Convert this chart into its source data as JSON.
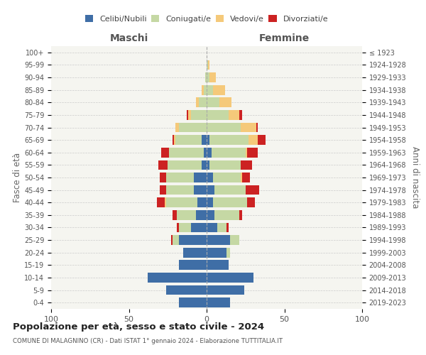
{
  "age_groups": [
    "0-4",
    "5-9",
    "10-14",
    "15-19",
    "20-24",
    "25-29",
    "30-34",
    "35-39",
    "40-44",
    "45-49",
    "50-54",
    "55-59",
    "60-64",
    "65-69",
    "70-74",
    "75-79",
    "80-84",
    "85-89",
    "90-94",
    "95-99",
    "100+"
  ],
  "birth_years": [
    "2019-2023",
    "2014-2018",
    "2009-2013",
    "2004-2008",
    "1999-2003",
    "1994-1998",
    "1989-1993",
    "1984-1988",
    "1979-1983",
    "1974-1978",
    "1969-1973",
    "1964-1968",
    "1959-1963",
    "1954-1958",
    "1949-1953",
    "1944-1948",
    "1939-1943",
    "1934-1938",
    "1929-1933",
    "1924-1928",
    "≤ 1923"
  ],
  "male_celibi": [
    18,
    26,
    38,
    18,
    15,
    18,
    10,
    7,
    6,
    8,
    8,
    3,
    2,
    3,
    0,
    0,
    0,
    0,
    0,
    0,
    0
  ],
  "male_coniugati": [
    0,
    0,
    0,
    0,
    0,
    4,
    8,
    12,
    20,
    18,
    18,
    22,
    22,
    17,
    18,
    10,
    5,
    2,
    1,
    0,
    0
  ],
  "male_vedovi": [
    0,
    0,
    0,
    0,
    0,
    0,
    0,
    0,
    1,
    0,
    0,
    0,
    0,
    1,
    2,
    2,
    2,
    1,
    0,
    0,
    0
  ],
  "male_divorziati": [
    0,
    0,
    0,
    0,
    0,
    1,
    1,
    3,
    5,
    4,
    4,
    6,
    5,
    1,
    0,
    1,
    0,
    0,
    0,
    0,
    0
  ],
  "female_celibi": [
    15,
    24,
    30,
    14,
    13,
    15,
    7,
    5,
    4,
    5,
    4,
    2,
    3,
    2,
    0,
    0,
    0,
    0,
    0,
    0,
    0
  ],
  "female_coniugati": [
    0,
    0,
    0,
    0,
    2,
    6,
    6,
    16,
    22,
    20,
    18,
    20,
    22,
    25,
    22,
    14,
    8,
    4,
    2,
    1,
    0
  ],
  "female_vedovi": [
    0,
    0,
    0,
    0,
    0,
    0,
    0,
    0,
    0,
    0,
    1,
    0,
    1,
    6,
    10,
    7,
    8,
    8,
    4,
    1,
    0
  ],
  "female_divorziati": [
    0,
    0,
    0,
    0,
    0,
    0,
    1,
    2,
    5,
    9,
    5,
    7,
    7,
    5,
    1,
    2,
    0,
    0,
    0,
    0,
    0
  ],
  "color_celibi": "#3f6ea6",
  "color_coniugati": "#c5d8a4",
  "color_vedovi": "#f5c97a",
  "color_divorziati": "#cc2222",
  "legend_celibi": "Celibi/Nubili",
  "legend_coniugati": "Coniugati/e",
  "legend_vedovi": "Vedovi/e",
  "legend_divorziati": "Divorziati/e",
  "title": "Popolazione per età, sesso e stato civile - 2024",
  "subtitle": "COMUNE DI MALAGNINO (CR) - Dati ISTAT 1° gennaio 2024 - Elaborazione TUTTITALIA.IT",
  "xlabel_left": "Maschi",
  "xlabel_right": "Femmine",
  "ylabel_left": "Fasce di età",
  "ylabel_right": "Anni di nascita",
  "xlim": 100,
  "background_color": "#f5f5f0",
  "grid_color": "#cccccc"
}
